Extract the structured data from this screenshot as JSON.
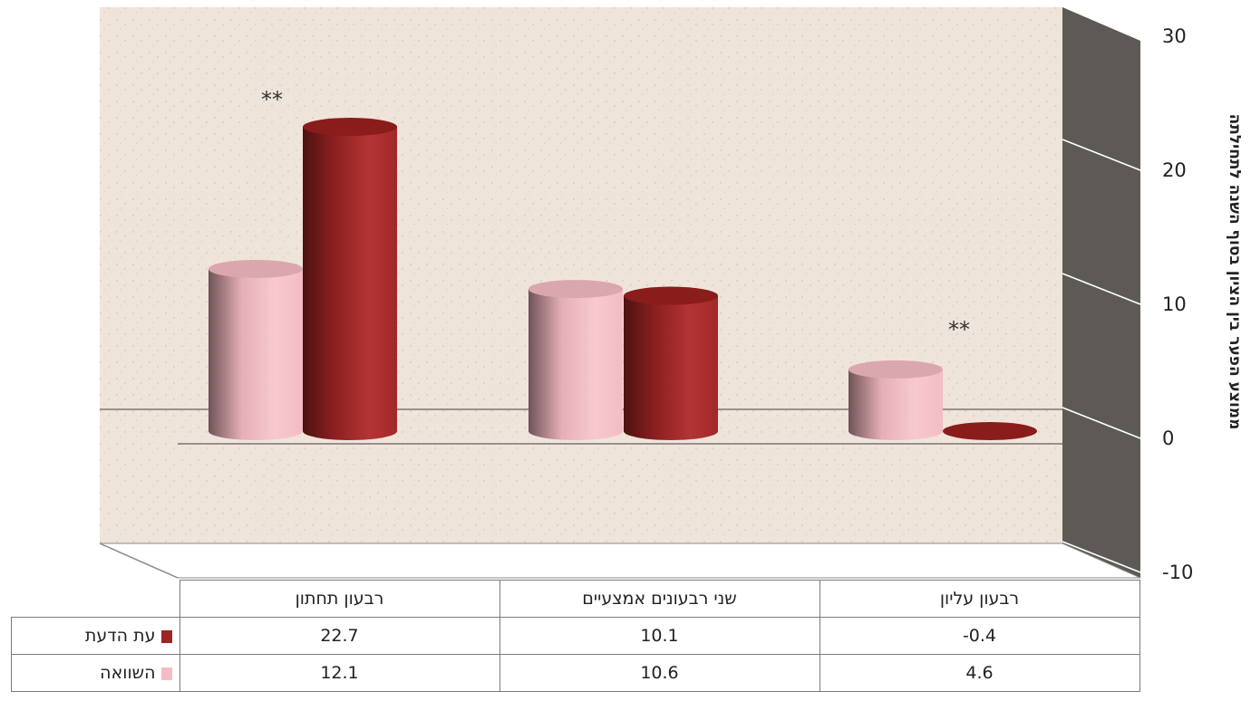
{
  "chart_data": {
    "type": "bar",
    "ylabel": "ממוצע הפער בין הציון בסוף השנה לתחילתה",
    "yticks": [
      30,
      20,
      10,
      0,
      -10
    ],
    "ylim": [
      -10,
      30
    ],
    "categories": [
      "רבעון תחתון",
      "שני רבעונים אמצעיים",
      "רבעון עליון"
    ],
    "series": [
      {
        "name": "השוואה",
        "values": [
          12.1,
          10.6,
          4.6
        ],
        "color": "#f4bcc4"
      },
      {
        "name": "עת הדעת",
        "values": [
          22.7,
          10.1,
          -0.4
        ],
        "color": "#9e2424"
      }
    ],
    "annotations": [
      "**",
      "**"
    ],
    "table": {
      "rows": [
        {
          "label": "עת הדעת",
          "values": [
            "22.7",
            "10.1",
            "-0.4"
          ]
        },
        {
          "label": "השוואה",
          "values": [
            "12.1",
            "10.6",
            "4.6"
          ]
        }
      ]
    }
  }
}
